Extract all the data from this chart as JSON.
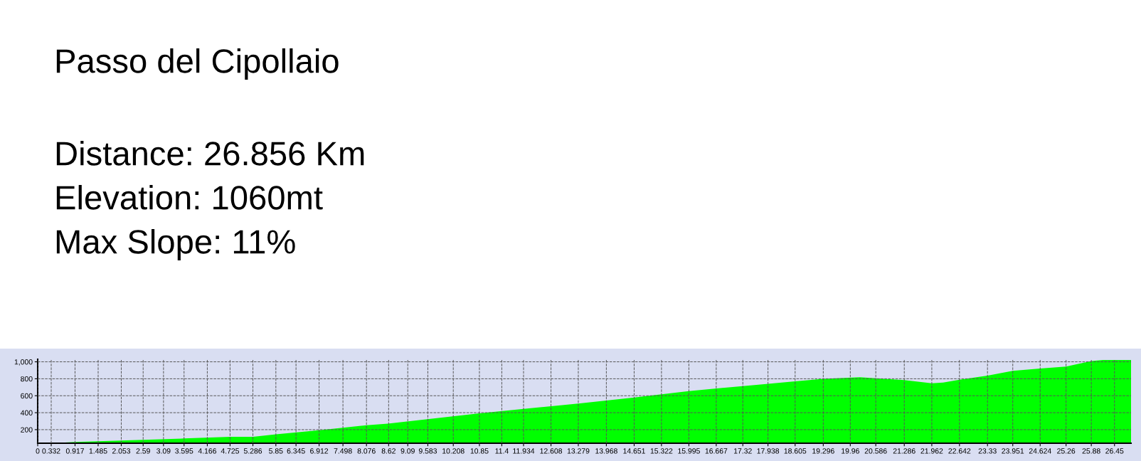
{
  "chart_data": {
    "type": "area",
    "title": "Passo del Cipollaio",
    "annotations": [
      "Distance: 26.856 Km",
      "Elevation: 1060mt",
      "Max Slope: 11%"
    ],
    "x": [
      0,
      0.332,
      0.5,
      0.917,
      2.59,
      3.595,
      4.725,
      5.286,
      5.85,
      6.912,
      8.076,
      8.6,
      10.85,
      11.934,
      13.279,
      14.651,
      15.995,
      17.8,
      18.605,
      19.296,
      20.2,
      20.586,
      21.286,
      21.962,
      22.24,
      22.642,
      23.33,
      23.951,
      24.624,
      25.26,
      25.88,
      26.17,
      26.856
    ],
    "series": [
      {
        "color": "#00ff00",
        "values": [
          45,
          45,
          45,
          55,
          79,
          96,
          116,
          116,
          145,
          194,
          252,
          270,
          392,
          444,
          508,
          578,
          655,
          735,
          769,
          799,
          819,
          805,
          784,
          747,
          756,
          789,
          837,
          894,
          921,
          944,
          1008,
          1022,
          1022
        ]
      }
    ],
    "xlim": [
      0,
      26.856
    ],
    "ylim": [
      40,
      1030
    ],
    "xticks": [
      0,
      0.332,
      0.917,
      1.485,
      2.053,
      2.59,
      3.09,
      3.595,
      4.166,
      4.725,
      5.286,
      5.85,
      6.345,
      6.912,
      7.498,
      8.076,
      8.62,
      9.09,
      9.583,
      10.208,
      10.85,
      11.4,
      11.934,
      12.608,
      13.279,
      13.968,
      14.651,
      15.322,
      15.995,
      16.667,
      17.32,
      17.938,
      18.605,
      19.296,
      19.96,
      20.586,
      21.286,
      21.962,
      22.642,
      23.33,
      23.951,
      24.624,
      25.26,
      25.88,
      26.45
    ],
    "yticks": [
      200,
      400,
      600,
      800,
      {
        "value": 1000,
        "label": "1,000"
      }
    ],
    "grid": true,
    "line_style": "dashed"
  }
}
